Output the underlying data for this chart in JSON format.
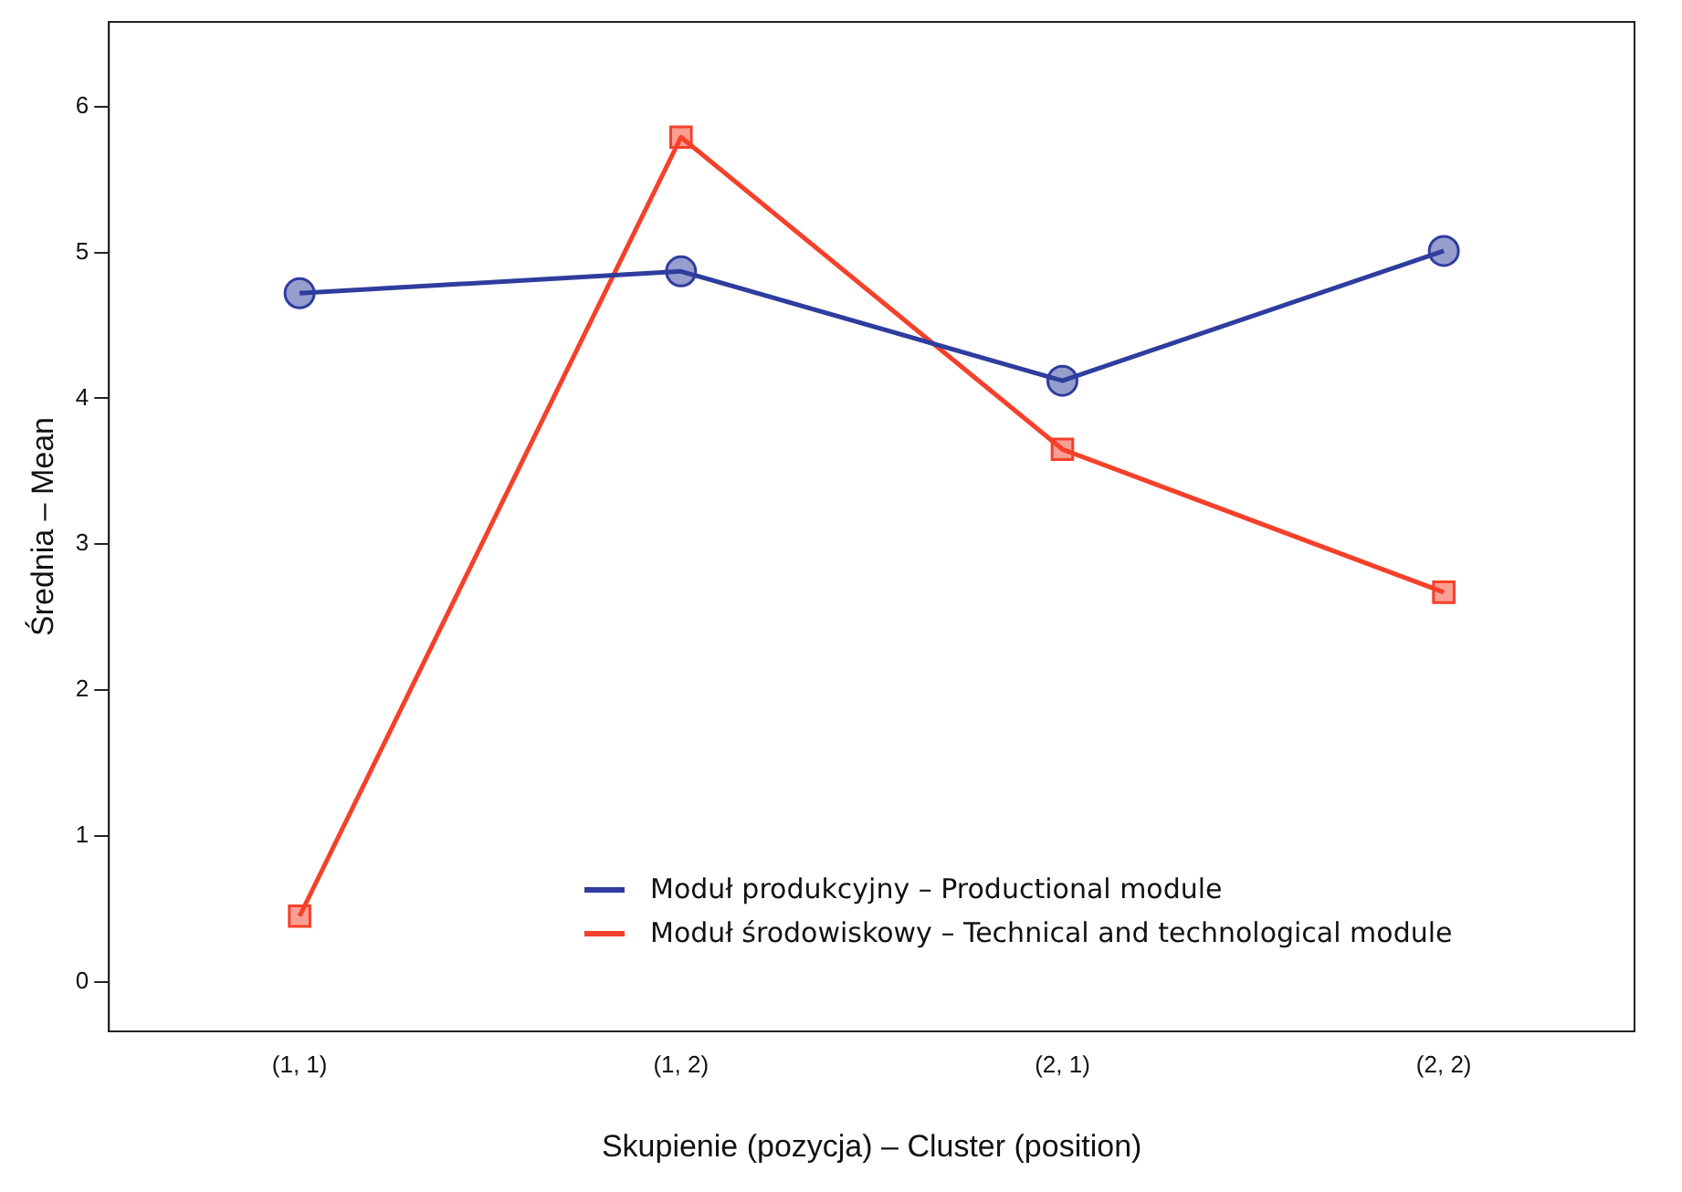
{
  "chart_data": {
    "type": "line",
    "xlabel": "Skupienie (pozycja) – Cluster (position)",
    "ylabel": "Średnia – Mean",
    "categories": [
      "(1, 1)",
      "(1, 2)",
      "(2, 1)",
      "(2, 2)"
    ],
    "ylim": [
      -0.34,
      6.58
    ],
    "yticks": [
      0,
      1,
      2,
      3,
      4,
      5,
      6
    ],
    "grid": false,
    "legend": "bottom right",
    "line_style": "solid",
    "series": [
      {
        "name": "Moduł produkcyjny – Productional module",
        "color": "#2e3d9e",
        "marker": "circle",
        "values": [
          4.72,
          4.87,
          4.12,
          5.01
        ]
      },
      {
        "name": "Moduł środowiskowy – Technical and technological module",
        "color": "#f5402a",
        "marker": "square",
        "values": [
          0.45,
          5.79,
          3.65,
          2.67
        ]
      }
    ]
  }
}
